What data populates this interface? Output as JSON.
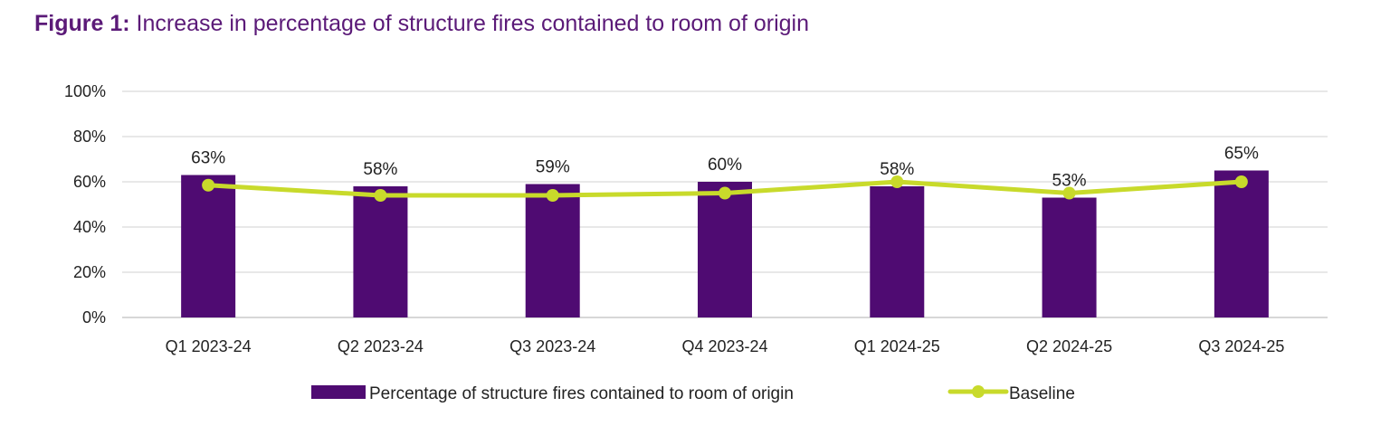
{
  "figure": {
    "label": "Figure 1:",
    "title": "Increase in percentage of structure fires contained to room of origin"
  },
  "chart_data": {
    "type": "bar",
    "categories": [
      "Q1 2023-24",
      "Q2 2023-24",
      "Q3 2023-24",
      "Q4 2023-24",
      "Q1 2024-25",
      "Q2 2024-25",
      "Q3 2024-25"
    ],
    "series": [
      {
        "name": "Percentage of structure fires contained to room of origin",
        "type": "bar",
        "color": "#4f0b72",
        "values": [
          63,
          58,
          59,
          60,
          58,
          53,
          65
        ],
        "data_labels": [
          "63%",
          "58%",
          "59%",
          "60%",
          "58%",
          "53%",
          "65%"
        ]
      },
      {
        "name": "Baseline",
        "type": "line",
        "color": "#c8da2b",
        "values": [
          58.5,
          54,
          54,
          55,
          60,
          55,
          60
        ]
      }
    ],
    "yticks": [
      "0%",
      "20%",
      "40%",
      "60%",
      "80%",
      "100%"
    ],
    "ylim": [
      0,
      100
    ],
    "grid": true,
    "legend_position": "bottom"
  }
}
